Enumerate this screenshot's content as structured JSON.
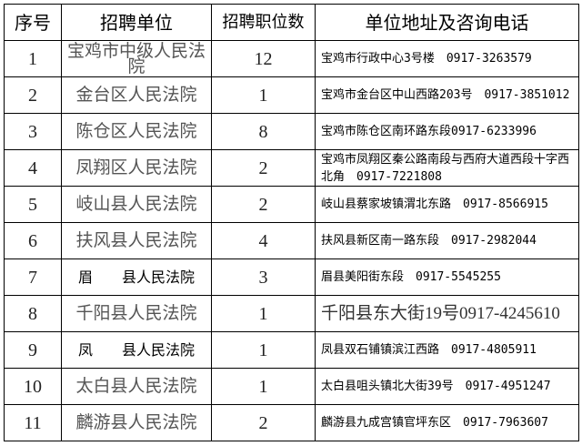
{
  "headers": [
    "序号",
    "招聘单位",
    "招聘职位数",
    "单位地址及咨询电话"
  ],
  "rows": [
    {
      "no": "1",
      "unit": "宝鸡市中级人民法院",
      "positions": "12",
      "address": "宝鸡市行政中心3号楼　0917-3263579"
    },
    {
      "no": "2",
      "unit": "金台区人民法院",
      "positions": "1",
      "address": "宝鸡市金台区中山西路203号　0917-3851012"
    },
    {
      "no": "3",
      "unit": "陈仓区人民法院",
      "positions": "8",
      "address": "宝鸡市陈仓区南环路东段0917-6233996"
    },
    {
      "no": "4",
      "unit": "凤翔区人民法院",
      "positions": "2",
      "address": "宝鸡市凤翔区秦公路南段与西府大道西段十字西北角　0917-7221808"
    },
    {
      "no": "5",
      "unit": "岐山县人民法院",
      "positions": "2",
      "address": "岐山县蔡家坡镇渭北东路　0917-8566915"
    },
    {
      "no": "6",
      "unit": "扶风县人民法院",
      "positions": "4",
      "address": "扶风县新区南一路东段　0917-2982044"
    },
    {
      "no": "7",
      "unit": "眉　　县人民法院",
      "positions": "3",
      "address": "眉县美阳街东段　0917-5545255"
    },
    {
      "no": "8",
      "unit": "千阳县人民法院",
      "positions": "1",
      "address": "千阳县东大街19号0917-4245610"
    },
    {
      "no": "9",
      "unit": "凤　　县人民法院",
      "positions": "1",
      "address": "凤县双石铺镇滨江西路　0917-4805911"
    },
    {
      "no": "10",
      "unit": "太白县人民法院",
      "positions": "1",
      "address": "太白县咀头镇北大街39号　0917-4951247"
    },
    {
      "no": "11",
      "unit": "麟游县人民法院",
      "positions": "2",
      "address": "麟游县九成宫镇官坪东区　0917-7963607"
    }
  ]
}
